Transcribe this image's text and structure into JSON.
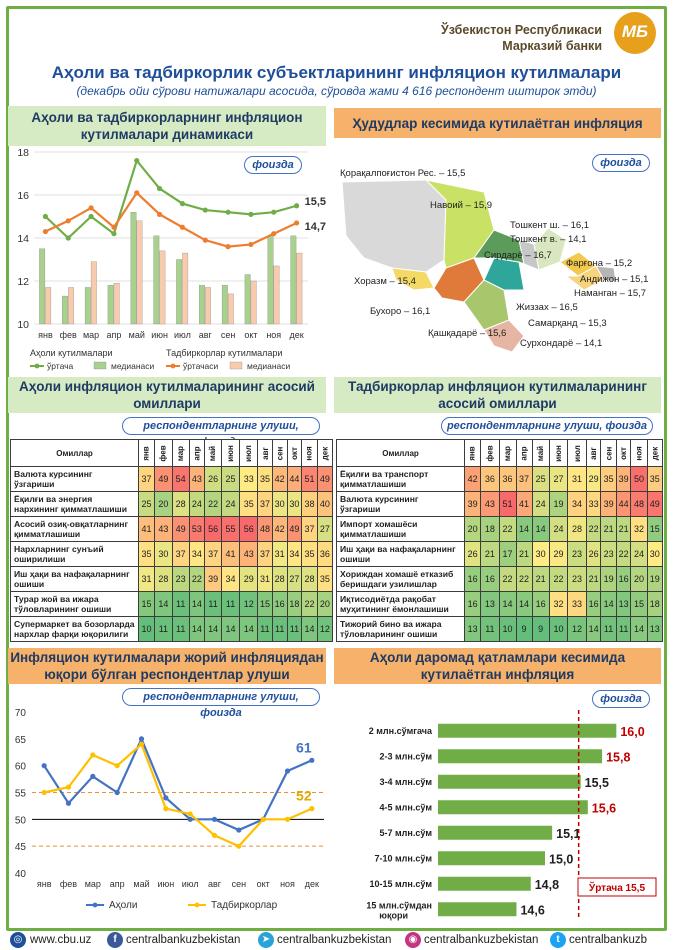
{
  "header": {
    "bank_line1": "Ўзбекистон Республикаси",
    "bank_line2": "Марказий банки",
    "logo": "МБ",
    "title": "Аҳоли ва тадбиркорлик субъектларининг инфляцион кутилмалари",
    "subtitle": "(декабрь ойи сўрови натижалари асосида, сўровда жами 4 616 респондент иштирок этди)"
  },
  "sections": {
    "dynamics_title": "Аҳоли ва тадбиркорларнинг инфляцион кутилмалари динамикаси",
    "regions_title": "Ҳудудлар кесимида кутилаётган инфляция",
    "pop_factors_title": "Аҳоли инфляцион кутилмаларининг асосий омиллари",
    "biz_factors_title": "Тадбиркорлар инфляцион кутилмаларининг асосий омиллари",
    "share_title": "Инфляцион кутилмалари жорий инфляциядан юқори бўлган респондентлар улуши",
    "income_title": "Аҳоли даромад қатламлари кесимида кутилаётган инфляция",
    "pct_pill": "фоизда",
    "resp_pill": "респондентларнинг улуши, фоизда"
  },
  "chart_data": [
    {
      "type": "line",
      "id": "dynamics",
      "categories": [
        "янв",
        "фев",
        "мар",
        "апр",
        "май",
        "июн",
        "июл",
        "авг",
        "сен",
        "окт",
        "ноя",
        "дек"
      ],
      "ylim": [
        10,
        18
      ],
      "yticks": [
        10,
        12,
        14,
        16,
        18
      ],
      "series": [
        {
          "name": "ўртача",
          "group": "Аҳоли кутилмалари",
          "kind": "line",
          "color": "#70ad47",
          "values": [
            15.0,
            14.0,
            15.0,
            14.2,
            17.6,
            16.3,
            15.6,
            15.3,
            15.2,
            15.1,
            15.2,
            15.5
          ]
        },
        {
          "name": "медианаси",
          "group": "Аҳоли кутилмалари",
          "kind": "bar",
          "color": "#a9d18e",
          "values": [
            13.5,
            11.3,
            11.7,
            11.8,
            15.2,
            14.1,
            13.0,
            11.8,
            11.8,
            12.3,
            14.1,
            14.1
          ]
        },
        {
          "name": "ўртачаси",
          "group": "Тадбиркорлар кутилмалари",
          "kind": "line",
          "color": "#ed7d31",
          "values": [
            14.3,
            14.8,
            15.4,
            14.5,
            16.1,
            15.1,
            14.5,
            13.9,
            13.6,
            13.7,
            14.2,
            14.7
          ]
        },
        {
          "name": "медианаси",
          "group": "Тадбиркорлар кутилмалари",
          "kind": "bar",
          "color": "#f8cbad",
          "values": [
            11.7,
            11.7,
            12.9,
            11.9,
            14.8,
            13.4,
            13.3,
            11.7,
            11.4,
            12.0,
            12.7,
            13.3
          ]
        }
      ],
      "end_labels": [
        "15,5",
        "14,7"
      ],
      "legend_groups": [
        "Аҳоли кутилмалари",
        "Тадбиркорлар кутилмалари"
      ]
    },
    {
      "type": "table",
      "id": "pop_factors",
      "header": "Омиллар",
      "months": [
        "янв",
        "фев",
        "мар",
        "апр",
        "май",
        "июн",
        "июл",
        "авг",
        "сен",
        "окт",
        "ноя",
        "дек"
      ],
      "rows": [
        {
          "label": "Валюта курсининг ўзгариши",
          "values": [
            37,
            49,
            54,
            43,
            26,
            25,
            33,
            35,
            42,
            44,
            51,
            49
          ]
        },
        {
          "label": "Ёқилғи ва энергия нархининг қимматлашиши",
          "values": [
            25,
            20,
            28,
            24,
            22,
            24,
            35,
            37,
            30,
            30,
            38,
            40
          ]
        },
        {
          "label": "Асосий озиқ-овқатларнинг қимматлашиши",
          "values": [
            41,
            43,
            49,
            53,
            56,
            55,
            56,
            48,
            42,
            49,
            37,
            27
          ]
        },
        {
          "label": "Нархларнинг сунъий оширилиши",
          "values": [
            35,
            30,
            37,
            34,
            37,
            41,
            43,
            37,
            31,
            34,
            35,
            36
          ]
        },
        {
          "label": "Иш ҳақи ва нафақаларнинг ошиши",
          "values": [
            31,
            28,
            23,
            22,
            39,
            34,
            29,
            31,
            28,
            27,
            28,
            35
          ]
        },
        {
          "label": "Турар жой ва ижара тўловларининг ошиши",
          "values": [
            15,
            14,
            11,
            14,
            11,
            11,
            12,
            15,
            16,
            18,
            22,
            20
          ]
        },
        {
          "label": "Супермаркет ва бозорларда нархлар фарқи юқорилиги",
          "values": [
            10,
            11,
            11,
            14,
            14,
            14,
            14,
            11,
            11,
            11,
            14,
            12
          ]
        }
      ]
    },
    {
      "type": "table",
      "id": "biz_factors",
      "header": "Омиллар",
      "months": [
        "янв",
        "фев",
        "мар",
        "апр",
        "май",
        "июн",
        "июл",
        "авг",
        "сен",
        "окт",
        "ноя",
        "дек"
      ],
      "rows": [
        {
          "label": "Ёқилғи ва транспорт қимматлашиши",
          "values": [
            42,
            36,
            36,
            37,
            25,
            27,
            31,
            29,
            35,
            39,
            50,
            35
          ]
        },
        {
          "label": "Валюта курсининг ўзгариши",
          "values": [
            39,
            43,
            51,
            41,
            24,
            19,
            34,
            33,
            39,
            44,
            48,
            49
          ]
        },
        {
          "label": "Импорт хомашёси қимматлашиши",
          "values": [
            20,
            18,
            22,
            14,
            14,
            24,
            28,
            22,
            21,
            21,
            32,
            15
          ]
        },
        {
          "label": "Иш ҳақи ва нафақаларнинг ошиши",
          "values": [
            26,
            21,
            17,
            21,
            30,
            29,
            23,
            26,
            23,
            22,
            24,
            30
          ]
        },
        {
          "label": "Хориждан хомашё етказиб беришдаги узилишлар",
          "values": [
            16,
            16,
            22,
            22,
            21,
            22,
            23,
            21,
            19,
            16,
            20,
            19
          ]
        },
        {
          "label": "Иқтисодиётда рақобат муҳитининг ёмонлашиши",
          "values": [
            16,
            13,
            14,
            14,
            16,
            32,
            33,
            16,
            14,
            13,
            15,
            18
          ]
        },
        {
          "label": "Тижорий бино ва ижара тўловларининг ошиши",
          "values": [
            13,
            11,
            10,
            9,
            9,
            10,
            12,
            14,
            11,
            11,
            14,
            13
          ]
        }
      ]
    },
    {
      "type": "line",
      "id": "share",
      "categories": [
        "янв",
        "фев",
        "мар",
        "апр",
        "май",
        "июн",
        "июл",
        "авг",
        "сен",
        "окт",
        "ноя",
        "дек"
      ],
      "ylim": [
        40,
        70
      ],
      "yticks": [
        40,
        45,
        50,
        55,
        60,
        65,
        70
      ],
      "series": [
        {
          "name": "Аҳоли",
          "color": "#4472c4",
          "values": [
            60,
            53,
            58,
            55,
            65,
            54,
            50,
            50,
            48,
            50,
            59,
            61
          ]
        },
        {
          "name": "Тадбиркорлар",
          "color": "#ffc000",
          "values": [
            55,
            56,
            62,
            60,
            64,
            52,
            51,
            47,
            45,
            50,
            50,
            52
          ]
        }
      ],
      "end_labels": [
        "61",
        "52"
      ]
    },
    {
      "type": "bar",
      "id": "income",
      "orientation": "horizontal",
      "categories": [
        "2 млн.сўмгача",
        "2-3 млн.сўм",
        "3-4 млн.сўм",
        "4-5 млн.сўм",
        "5-7 млн.сўм",
        "7-10 млн.сўм",
        "10-15 млн.сўм",
        "15 млн.сўмдан юқори"
      ],
      "values": [
        16.0,
        15.8,
        15.5,
        15.6,
        15.1,
        15.0,
        14.8,
        14.6
      ],
      "value_labels": [
        "16,0",
        "15,8",
        "15,5",
        "15,6",
        "15,1",
        "15,0",
        "14,8",
        "14,6"
      ],
      "average": 15.5,
      "average_label": "Ўртача 15,5"
    }
  ],
  "regions": [
    {
      "name": "Қорақалпоғистон Рес. – 15,5"
    },
    {
      "name": "Навоий – 15,9"
    },
    {
      "name": "Тошкент ш. – 16,1"
    },
    {
      "name": "Тошкент в. – 14,1"
    },
    {
      "name": "Сирдарё – 16,7"
    },
    {
      "name": "Фарғона – 15,2"
    },
    {
      "name": "Андижон – 15,1"
    },
    {
      "name": "Наманган – 15,7"
    },
    {
      "name": "Жиззах – 16,5"
    },
    {
      "name": "Хоразм – 15,4"
    },
    {
      "name": "Бухоро – 16,1"
    },
    {
      "name": "Самарқанд – 15,3"
    },
    {
      "name": "Қашқадарё – 15,6"
    },
    {
      "name": "Сурхондарё – 14,1"
    }
  ],
  "footer": {
    "site": "www.cbu.uz",
    "facebook": "centralbankuzbekistan",
    "telegram": "centralbankuzbekistan",
    "instagram": "centralbankuzbekistan",
    "twitter": "centralbankuzb"
  },
  "colors": {
    "accent_blue": "#1f4e9a",
    "frame_green": "#6fae44",
    "section_green": "#d6ebc4",
    "section_orange": "#f6b26b",
    "bar_green": "#70ad47",
    "avg_red": "#c00000"
  }
}
